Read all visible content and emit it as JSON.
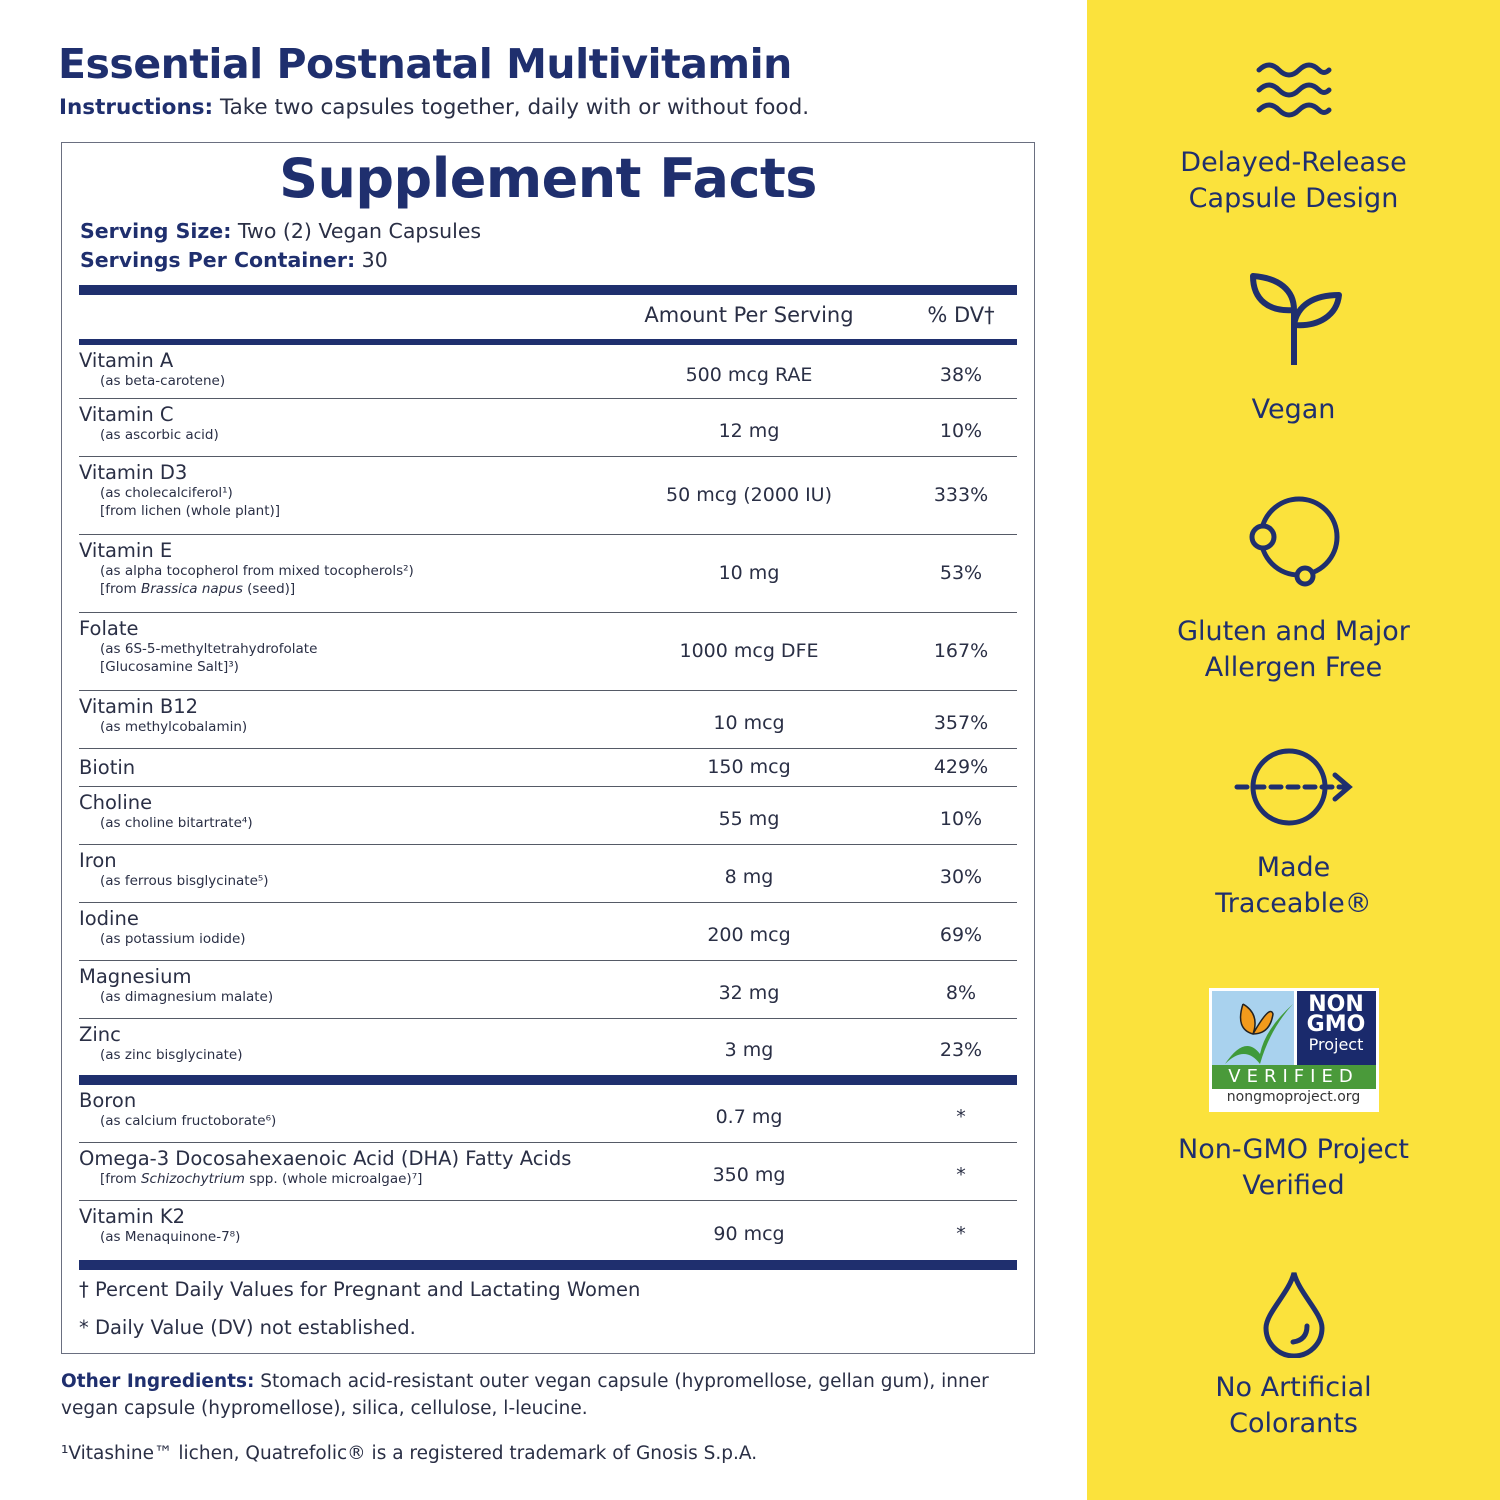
{
  "title": "Essential Postnatal Multivitamin",
  "instructions": {
    "label": "Instructions:",
    "text": " Take two capsules together, daily with or without food."
  },
  "facts": {
    "heading": "Supplement Facts",
    "serving_size_label": "Serving Size:",
    "serving_size": " Two (2) Vegan Capsules",
    "servings_label": "Servings Per Container:",
    "servings": " 30",
    "col_amount": "Amount Per Serving",
    "col_dv": "% DV†",
    "rows": [
      {
        "name": "Vitamin A",
        "sub": [
          [
            {
              "t": "(as beta-carotene)"
            }
          ]
        ],
        "amount": "500 mcg RAE",
        "dv": "38%"
      },
      {
        "name": "Vitamin C",
        "sub": [
          [
            {
              "t": "(as ascorbic acid)"
            }
          ]
        ],
        "amount": "12 mg",
        "dv": "10%"
      },
      {
        "name": "Vitamin D3",
        "sub": [
          [
            {
              "t": "(as cholecalciferol¹)"
            }
          ],
          [
            {
              "t": "[from lichen (whole plant)]"
            }
          ]
        ],
        "amount": "50 mcg (2000 IU)",
        "dv": "333%"
      },
      {
        "name": "Vitamin E",
        "sub": [
          [
            {
              "t": "(as alpha tocopherol from mixed tocopherols²)"
            }
          ],
          [
            {
              "t": "[from "
            },
            {
              "t": "Brassica napus",
              "i": true
            },
            {
              "t": " (seed)]"
            }
          ]
        ],
        "amount": "10 mg",
        "dv": "53%"
      },
      {
        "name": "Folate",
        "sub": [
          [
            {
              "t": "(as 6S-5-methyltetrahydrofolate"
            }
          ],
          [
            {
              "t": "[Glucosamine Salt]³)"
            }
          ]
        ],
        "amount": "1000 mcg DFE",
        "dv": "167%"
      },
      {
        "name": "Vitamin B12",
        "sub": [
          [
            {
              "t": "(as methylcobalamin)"
            }
          ]
        ],
        "amount": "10 mcg",
        "dv": "357%"
      },
      {
        "name": "Biotin",
        "sub": [],
        "amount": "150 mcg",
        "dv": "429%"
      },
      {
        "name": "Choline",
        "sub": [
          [
            {
              "t": "(as choline bitartrate⁴)"
            }
          ]
        ],
        "amount": "55 mg",
        "dv": "10%"
      },
      {
        "name": "Iron",
        "sub": [
          [
            {
              "t": "(as ferrous bisglycinate⁵)"
            }
          ]
        ],
        "amount": "8 mg",
        "dv": "30%"
      },
      {
        "name": "Iodine",
        "sub": [
          [
            {
              "t": "(as potassium iodide)"
            }
          ]
        ],
        "amount": "200 mcg",
        "dv": "69%"
      },
      {
        "name": "Magnesium",
        "sub": [
          [
            {
              "t": "(as dimagnesium malate)"
            }
          ]
        ],
        "amount": "32 mg",
        "dv": "8%"
      },
      {
        "name": "Zinc",
        "sub": [
          [
            {
              "t": "(as zinc bisglycinate)"
            }
          ]
        ],
        "amount": "3 mg",
        "dv": "23%"
      }
    ],
    "rows2": [
      {
        "name": "Boron",
        "sub": [
          [
            {
              "t": "(as calcium fructoborate⁶)"
            }
          ]
        ],
        "amount": "0.7 mg",
        "dv": "*"
      },
      {
        "name": "Omega-3 Docosahexaenoic Acid (DHA) Fatty Acids",
        "sub": [
          [
            {
              "t": "[from "
            },
            {
              "t": "Schizochytrium",
              "i": true
            },
            {
              "t": " spp. (whole microalgae)⁷]"
            }
          ]
        ],
        "amount": "350 mg",
        "dv": "*"
      },
      {
        "name": "Vitamin K2",
        "sub": [
          [
            {
              "t": "(as Menaquinone-7⁸)"
            }
          ]
        ],
        "amount": "90 mcg",
        "dv": "*"
      }
    ],
    "footnote_dv": "† Percent Daily Values for Pregnant and Lactating Women",
    "footnote_star": "* Daily Value (DV) not established."
  },
  "other_ingredients": {
    "label": "Other Ingredients:",
    "text": " Stomach acid-resistant outer vegan capsule (hypromellose, gellan gum), inner vegan capsule (hypromellose), silica, cellulose, l-leucine."
  },
  "trademark": "¹Vitashine™ lichen, Quatrefolic® is a registered trademark of Gnosis S.p.A.",
  "features": [
    {
      "icon": "waves-icon",
      "label": "Delayed-Release Capsule Design"
    },
    {
      "icon": "sprout-icon",
      "label": "Vegan"
    },
    {
      "icon": "molecule-icon",
      "label": "Gluten and Major Allergen Free"
    },
    {
      "icon": "trace-arrow-icon",
      "label": "Made Traceable®"
    },
    {
      "icon": "non-gmo-badge",
      "label": "Non-GMO Project Verified",
      "badge": {
        "line1": "NON",
        "line2": "GMO",
        "line3": "Project",
        "band": "VERIFIED",
        "url": "nongmoproject.org"
      }
    },
    {
      "icon": "droplet-icon",
      "label": "No Artificial Colorants"
    }
  ],
  "colors": {
    "navy": "#1f2f6e",
    "yellow": "#fbe23c"
  }
}
